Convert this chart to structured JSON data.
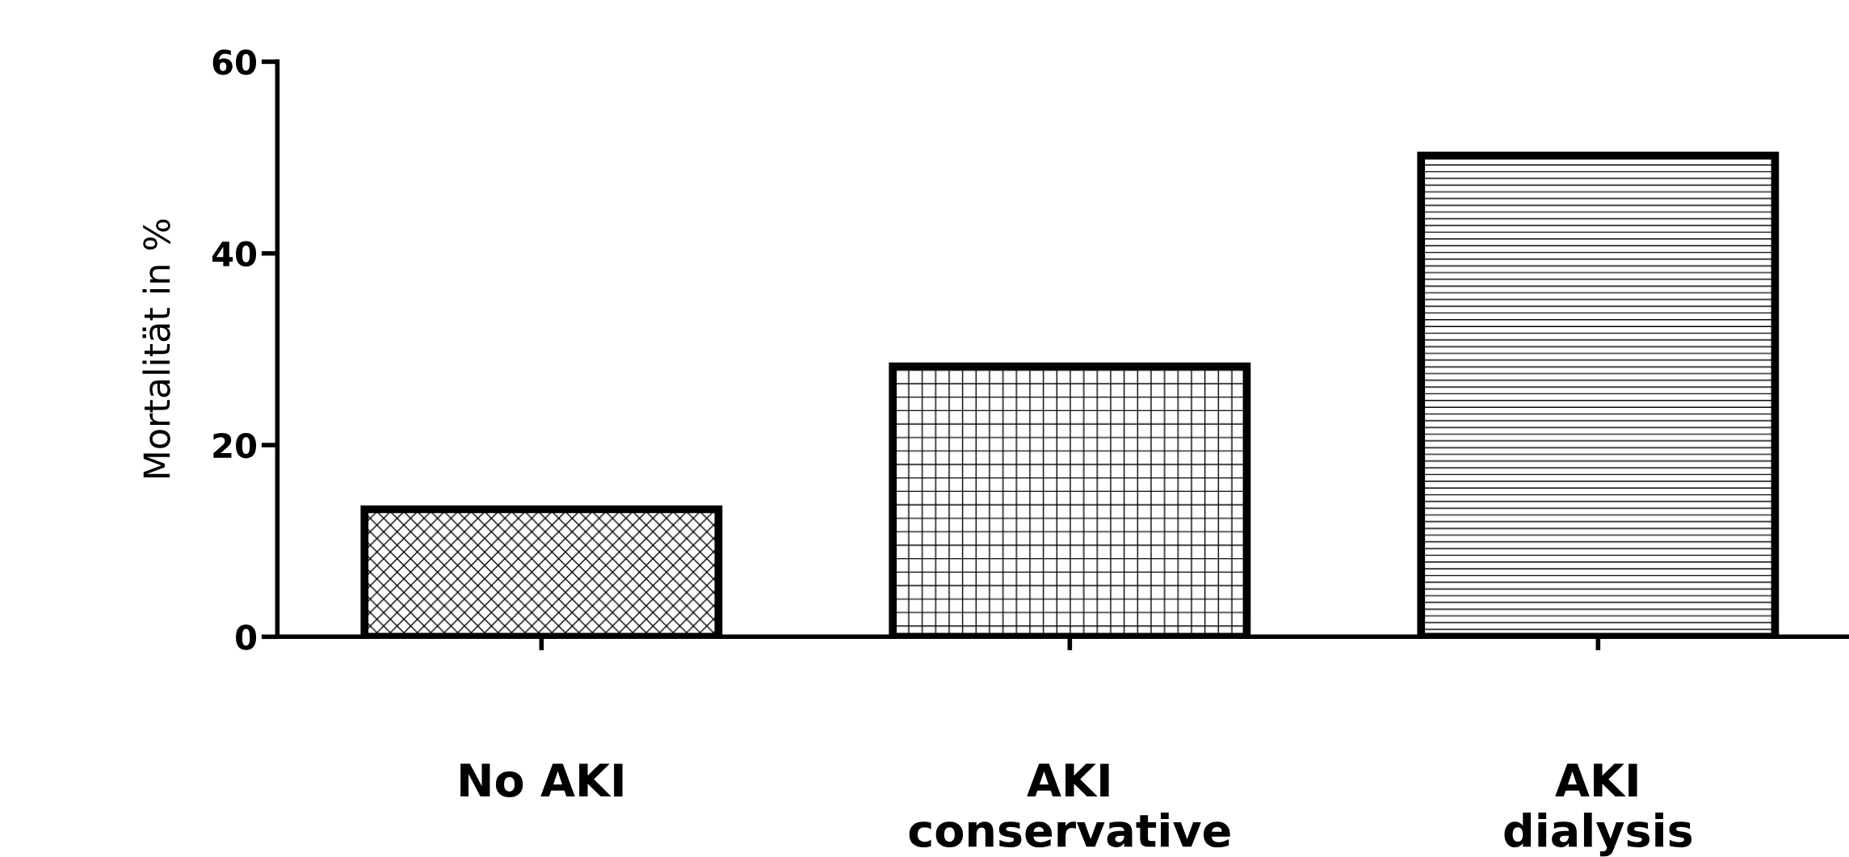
{
  "chart_data": {
    "type": "bar",
    "ylabel": "Mortalität in %",
    "categories": [
      "No AKI",
      "AKI\nconservative",
      "AKI\ndialysis"
    ],
    "values": [
      13.3,
      28.2,
      50.2
    ],
    "colors": [
      "#000000",
      "#000000",
      "#000000"
    ],
    "ylim": [
      0,
      60
    ],
    "yticks": [
      0,
      20,
      40,
      60
    ],
    "grid": false,
    "legend": false
  }
}
